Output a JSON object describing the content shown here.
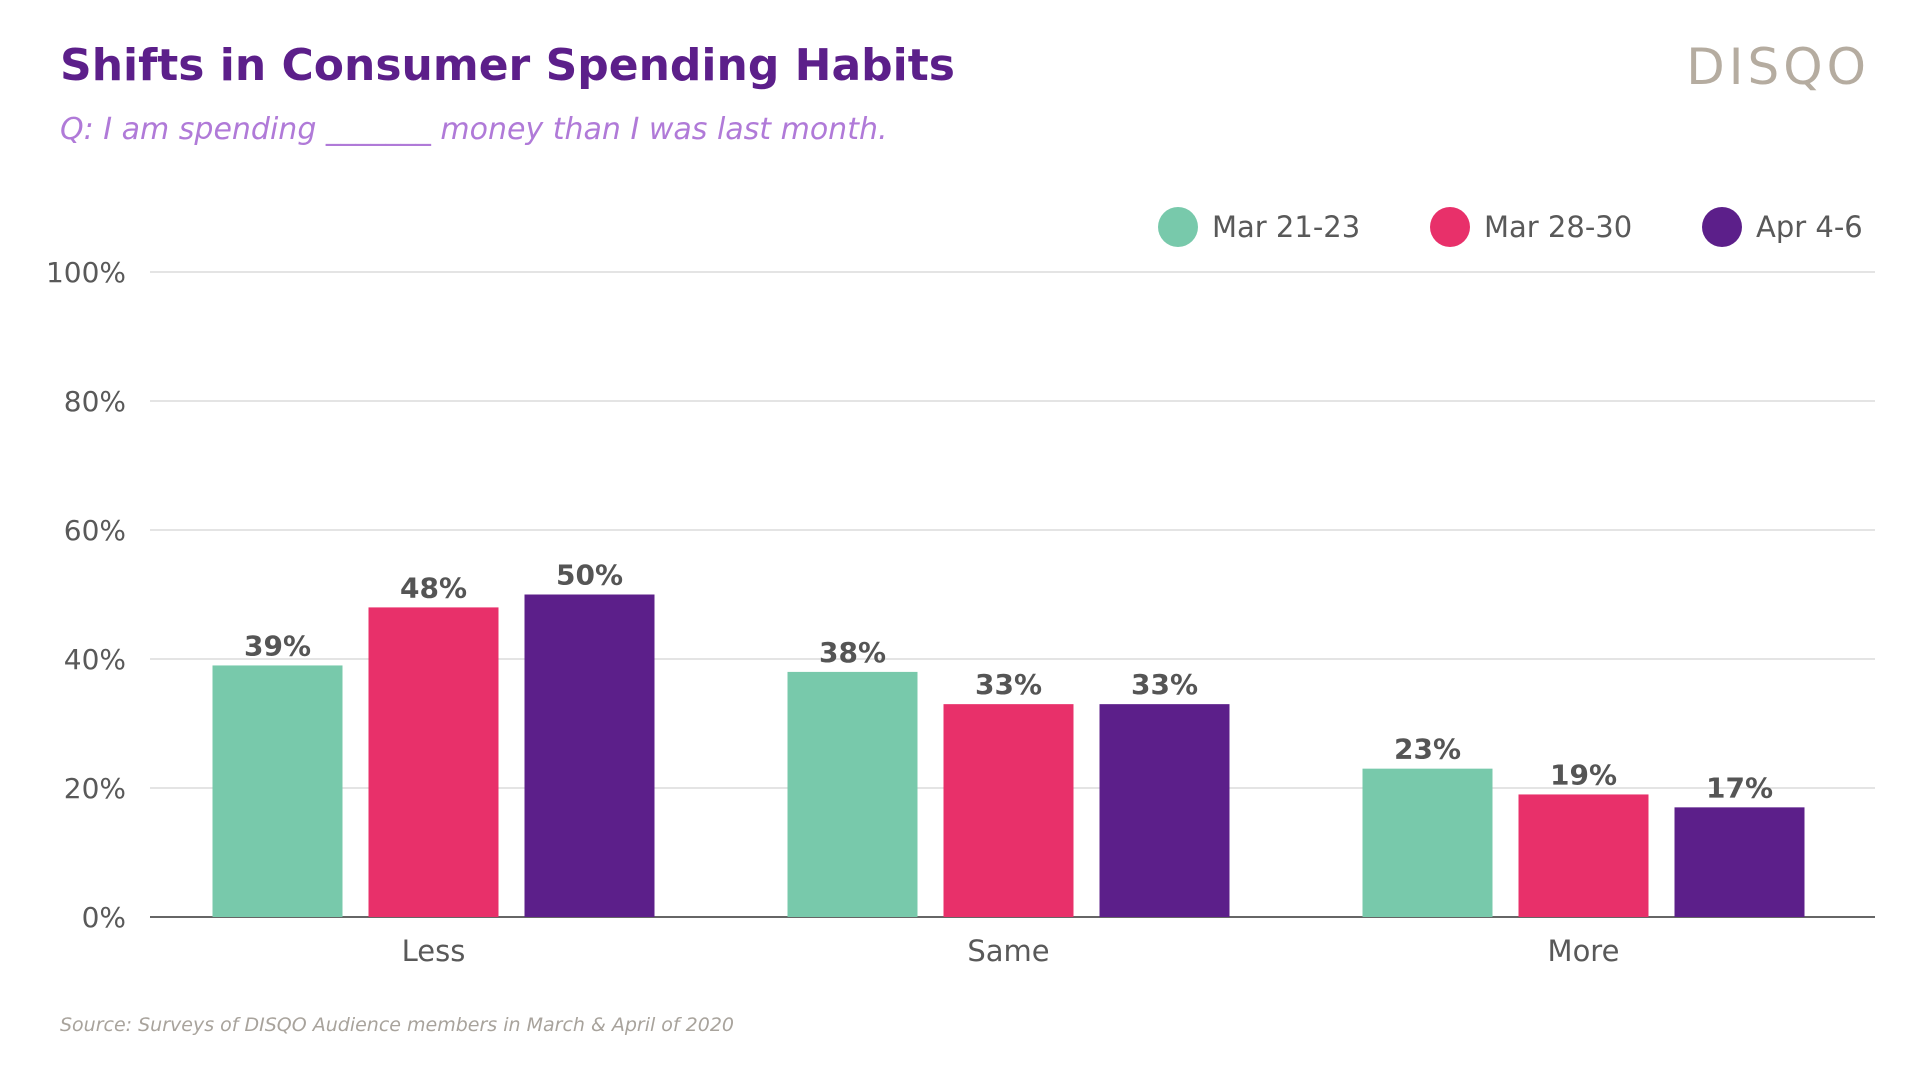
{
  "header": {
    "title": "Shifts in Consumer Spending Habits",
    "subtitle": "Q: I am spending _______ money than I was last month.",
    "logo": "DISQO"
  },
  "footer": {
    "source": "Source: Surveys of DISQO Audience members in March & April of 2020"
  },
  "chart_data": {
    "type": "bar",
    "title": "Shifts in Consumer Spending Habits",
    "categories": [
      "Less",
      "Same",
      "More"
    ],
    "series": [
      {
        "name": "Mar 21-23",
        "color": "#78c9ab",
        "values": [
          39,
          38,
          23
        ]
      },
      {
        "name": "Mar 28-30",
        "color": "#e8306a",
        "values": [
          48,
          33,
          19
        ]
      },
      {
        "name": "Apr 4-6",
        "color": "#5c1f8a",
        "values": [
          50,
          33,
          17
        ]
      }
    ],
    "value_labels": [
      [
        "39%",
        "38%",
        "23%"
      ],
      [
        "48%",
        "33%",
        "19%"
      ],
      [
        "50%",
        "33%",
        "17%"
      ]
    ],
    "ylim": [
      0,
      100
    ],
    "yticks": [
      0,
      20,
      40,
      60,
      80,
      100
    ],
    "ytick_labels": [
      "0%",
      "20%",
      "40%",
      "60%",
      "80%",
      "100%"
    ],
    "xlabel": "",
    "ylabel": "",
    "grid": true,
    "legend_position": "top-right"
  }
}
